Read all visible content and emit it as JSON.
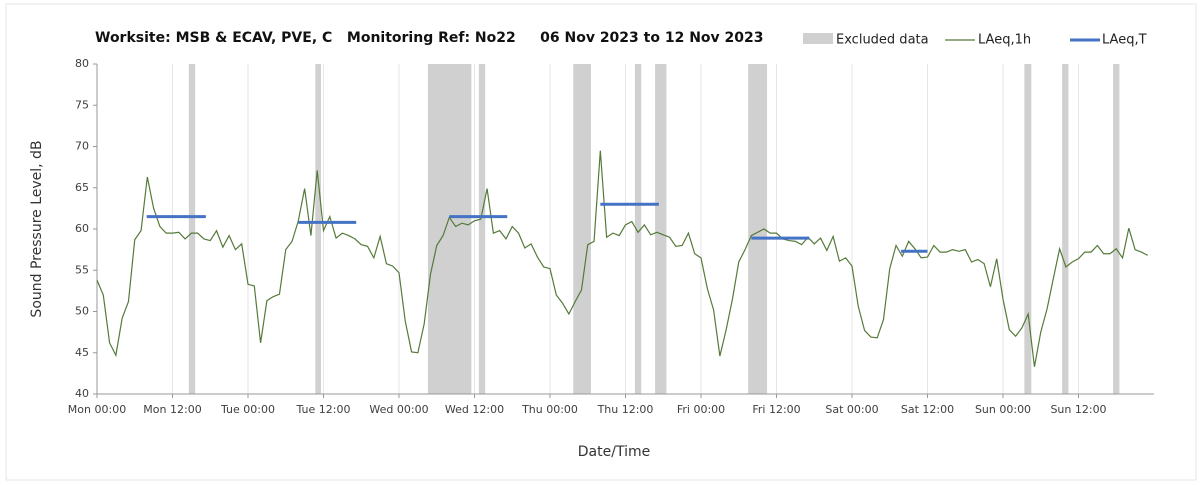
{
  "chart_data": {
    "type": "line",
    "title": "Worksite: MSB & ECAV, PVE, C   Monitoring Ref: No22     06 Nov 2023 to 12 Nov 2023",
    "x_label": "Date/Time",
    "y_label": "Sound Pressure Level, dB",
    "xlim": [
      0,
      168
    ],
    "ylim": [
      40,
      80
    ],
    "grid": "x",
    "yticks": [
      40,
      45,
      50,
      55,
      60,
      65,
      70,
      75,
      80
    ],
    "xticks": [
      {
        "value": 0,
        "label": "Mon 00:00"
      },
      {
        "value": 12,
        "label": "Mon 12:00"
      },
      {
        "value": 24,
        "label": "Tue 00:00"
      },
      {
        "value": 36,
        "label": "Tue 12:00"
      },
      {
        "value": 48,
        "label": "Wed 00:00"
      },
      {
        "value": 60,
        "label": "Wed 12:00"
      },
      {
        "value": 72,
        "label": "Thu 00:00"
      },
      {
        "value": 84,
        "label": "Thu 12:00"
      },
      {
        "value": 96,
        "label": "Fri 00:00"
      },
      {
        "value": 108,
        "label": "Fri 12:00"
      },
      {
        "value": 120,
        "label": "Sat 00:00"
      },
      {
        "value": 132,
        "label": "Sat 12:00"
      },
      {
        "value": 144,
        "label": "Sun 00:00"
      },
      {
        "value": 156,
        "label": "Sun 12:00"
      }
    ],
    "excluded": {
      "name": "Excluded data",
      "color": "#d0d0d0",
      "x_start": [
        14.6,
        34.7,
        52.6,
        60.7,
        75.7,
        85.5,
        88.7,
        103.5,
        147.4,
        153.4,
        161.5
      ],
      "x_end": [
        15.6,
        35.6,
        59.5,
        61.7,
        78.5,
        86.5,
        90.5,
        106.5,
        148.5,
        154.4,
        162.5
      ]
    },
    "series": [
      {
        "name": "LAeq,1h",
        "color": "#557a3a",
        "x": [
          0,
          1,
          2,
          3,
          4,
          5,
          6,
          7,
          8,
          9,
          10,
          11,
          12,
          13,
          14,
          15,
          16,
          17,
          18,
          19,
          20,
          21,
          22,
          23,
          24,
          25,
          26,
          27,
          28,
          29,
          30,
          31,
          32,
          33,
          34,
          35,
          36,
          37,
          38,
          39,
          40,
          41,
          42,
          43,
          44,
          45,
          46,
          47,
          48,
          49,
          50,
          51,
          52,
          53,
          54,
          55,
          56,
          57,
          58,
          59,
          60,
          61,
          62,
          63,
          64,
          65,
          66,
          67,
          68,
          69,
          70,
          71,
          72,
          73,
          74,
          75,
          76,
          77,
          78,
          79,
          80,
          81,
          82,
          83,
          84,
          85,
          86,
          87,
          88,
          89,
          90,
          91,
          92,
          93,
          94,
          95,
          96,
          97,
          98,
          99,
          100,
          101,
          102,
          103,
          104,
          105,
          106,
          107,
          108,
          109,
          110,
          111,
          112,
          113,
          114,
          115,
          116,
          117,
          118,
          119,
          120,
          121,
          122,
          123,
          124,
          125,
          126,
          127,
          128,
          129,
          130,
          131,
          132,
          133,
          134,
          135,
          136,
          137,
          138,
          139,
          140,
          141,
          142,
          143,
          144,
          145,
          146,
          147,
          148,
          149,
          150,
          151,
          152,
          153,
          154,
          155,
          156,
          157,
          158,
          159,
          160,
          161,
          162,
          163,
          164,
          165,
          166,
          167
        ],
        "values": [
          53.8,
          52,
          46.2,
          44.7,
          49.2,
          51.2,
          58.7,
          59.8,
          66.3,
          62.5,
          60.3,
          59.5,
          59.5,
          59.6,
          58.8,
          59.5,
          59.5,
          58.8,
          58.6,
          59.8,
          57.8,
          59.2,
          57.5,
          58.2,
          53.3,
          53.1,
          46.2,
          51.3,
          51.8,
          52.1,
          57.5,
          58.5,
          61,
          64.9,
          59.2,
          67.1,
          59.8,
          61.5,
          58.9,
          59.5,
          59.2,
          58.8,
          58.1,
          57.9,
          56.5,
          59.1,
          55.8,
          55.5,
          54.7,
          48.8,
          45.1,
          45,
          48.5,
          54.5,
          58,
          59.2,
          61.4,
          60.3,
          60.7,
          60.5,
          61,
          61.2,
          64.9,
          59.5,
          59.8,
          58.8,
          60.3,
          59.5,
          57.7,
          58.2,
          56.6,
          55.4,
          55.2,
          52,
          51,
          49.7,
          51.2,
          52.6,
          58.1,
          58.5,
          69.5,
          59,
          59.5,
          59.2,
          60.5,
          60.9,
          59.6,
          60.5,
          59.3,
          59.6,
          59.3,
          59,
          57.9,
          58,
          59.5,
          57,
          56.5,
          52.8,
          50.2,
          44.6,
          47.8,
          51.5,
          56,
          57.5,
          59.2,
          59.6,
          60,
          59.5,
          59.5,
          58.8,
          58.6,
          58.5,
          58.1,
          59,
          58.2,
          58.9,
          57.4,
          59.1,
          56.1,
          56.5,
          55.5,
          50.6,
          47.7,
          46.9,
          46.8,
          49,
          55.2,
          58,
          56.7,
          58.5,
          57.6,
          56.5,
          56.6,
          58,
          57.2,
          57.2,
          57.5,
          57.3,
          57.5,
          56,
          56.3,
          55.8,
          53,
          56.4,
          51.5,
          47.8,
          47,
          48,
          49.7,
          43.3,
          47.5,
          50.3,
          54,
          57.6,
          55.4,
          56,
          56.4,
          57.2,
          57.2,
          58,
          57,
          57,
          57.6,
          56.5,
          60.1,
          57.5,
          57.2,
          56.8
        ]
      }
    ],
    "segments": {
      "name": "LAeq,T",
      "color": "#4472c4",
      "x_start": [
        7.9,
        32,
        56,
        80,
        104,
        127.8
      ],
      "x_end": [
        17.3,
        41.2,
        65.2,
        89.3,
        113.2,
        132
      ],
      "values": [
        61.5,
        60.8,
        61.5,
        63,
        58.9,
        57.3
      ]
    }
  }
}
